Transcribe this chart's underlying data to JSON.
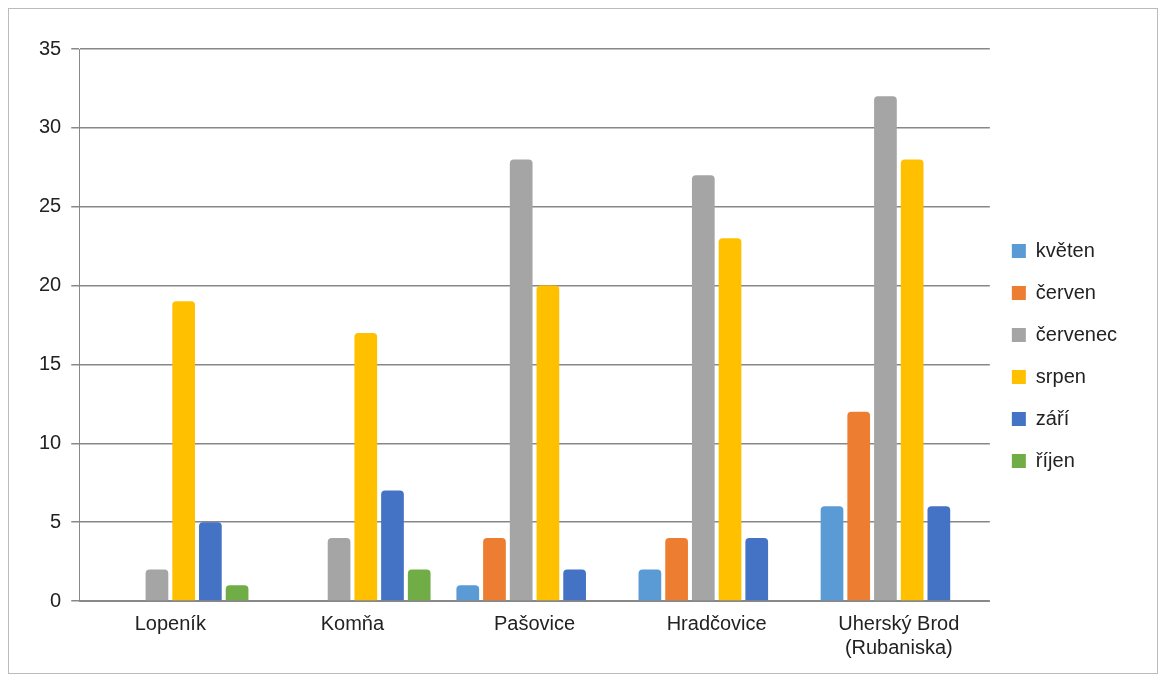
{
  "chart_data": {
    "type": "bar",
    "categories": [
      "Lopeník",
      "Komňa",
      "Pašovice",
      "Hradčovice",
      "Uherský Brod (Rubaniska)"
    ],
    "series": [
      {
        "name": "květen",
        "color": "#5b9bd5",
        "values": [
          0,
          0,
          1,
          2,
          6
        ]
      },
      {
        "name": "červen",
        "color": "#ed7d31",
        "values": [
          0,
          0,
          4,
          4,
          12
        ]
      },
      {
        "name": "červenec",
        "color": "#a5a5a5",
        "values": [
          2,
          4,
          28,
          27,
          32
        ]
      },
      {
        "name": "srpen",
        "color": "#ffc000",
        "values": [
          19,
          17,
          20,
          23,
          28
        ]
      },
      {
        "name": "září",
        "color": "#4472c4",
        "values": [
          5,
          7,
          2,
          4,
          6
        ]
      },
      {
        "name": "říjen",
        "color": "#70ad47",
        "values": [
          1,
          2,
          0,
          0,
          0
        ]
      }
    ],
    "ylim": [
      0,
      35
    ],
    "yticks": [
      0,
      5,
      10,
      15,
      20,
      25,
      30,
      35
    ],
    "grid": "y",
    "legend": "right"
  }
}
